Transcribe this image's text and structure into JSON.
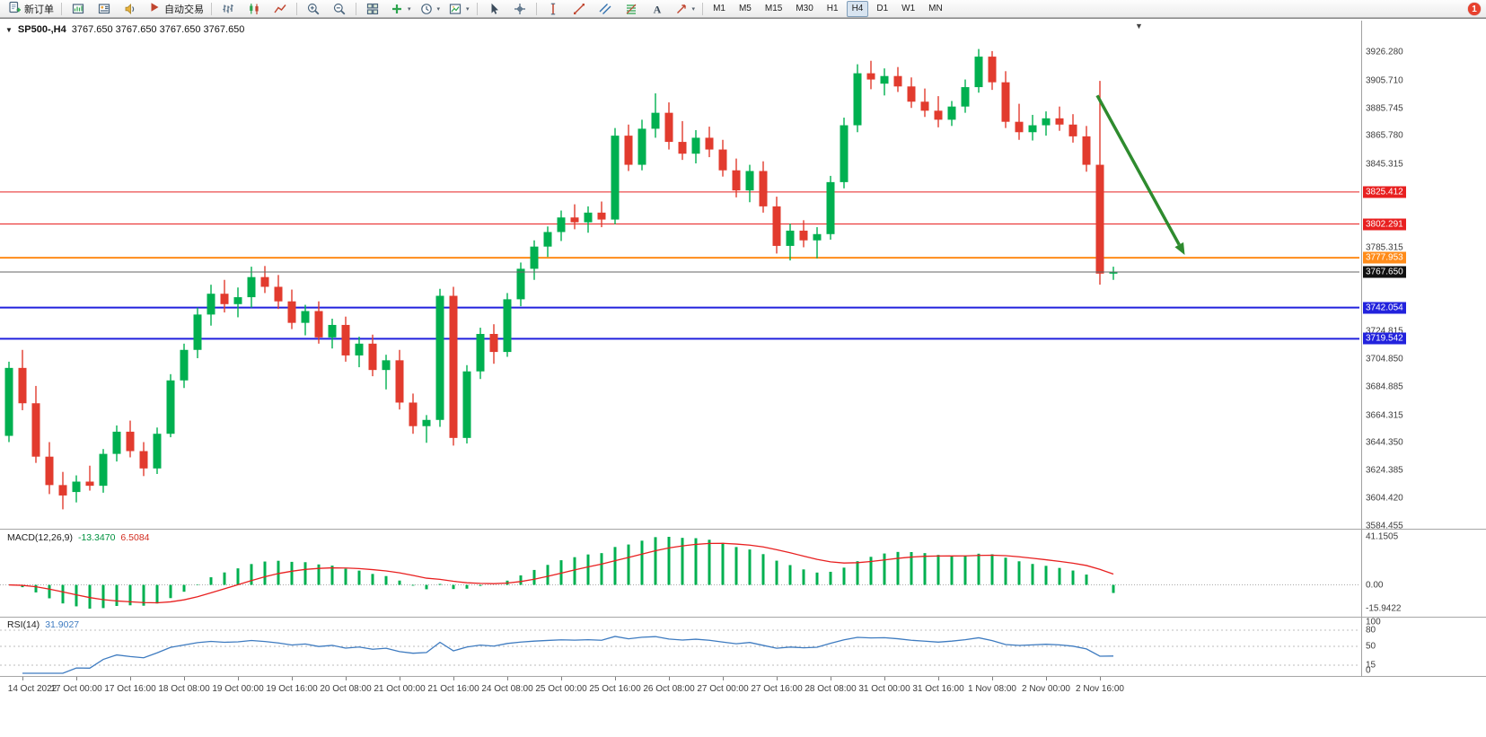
{
  "toolbar": {
    "new_order": {
      "label": "新订单"
    },
    "auto_trading": {
      "label": "自动交易"
    },
    "icon_groups": [
      {
        "name": "windows",
        "items": [
          {
            "name": "chart-window-button",
            "icon": "chart-window"
          },
          {
            "name": "market-watch-button",
            "icon": "profile"
          },
          {
            "name": "alerts-button",
            "icon": "sound"
          }
        ]
      },
      {
        "name": "chart-modes",
        "items": [
          {
            "name": "bar-chart-mode-button",
            "icon": "bars"
          },
          {
            "name": "candlestick-mode-button",
            "icon": "candles"
          },
          {
            "name": "line-chart-mode-button",
            "icon": "line-chart"
          }
        ]
      },
      {
        "name": "zoom",
        "items": [
          {
            "name": "zoom-in-button",
            "icon": "zoom-in"
          },
          {
            "name": "zoom-out-button",
            "icon": "zoom-out"
          }
        ]
      },
      {
        "name": "manage",
        "items": [
          {
            "name": "tile-windows-button",
            "icon": "tile"
          },
          {
            "name": "indicators-button",
            "icon": "indicators",
            "dropdown": true
          },
          {
            "name": "periods-button",
            "icon": "clock",
            "dropdown": true
          },
          {
            "name": "templates-button",
            "icon": "template",
            "dropdown": true
          }
        ]
      },
      {
        "name": "pointer",
        "items": [
          {
            "name": "cursor-tool-button",
            "icon": "cursor"
          },
          {
            "name": "crosshair-tool-button",
            "icon": "crosshair"
          }
        ]
      },
      {
        "name": "draw",
        "items": [
          {
            "name": "vertical-line-tool-button",
            "icon": "vline"
          },
          {
            "name": "trendline-tool-button",
            "icon": "trendline"
          },
          {
            "name": "channel-tool-button",
            "icon": "channel"
          },
          {
            "name": "fibonacci-tool-button",
            "icon": "fib"
          },
          {
            "name": "text-tool-button",
            "icon": "text"
          },
          {
            "name": "arrows-tool-button",
            "icon": "shapes",
            "dropdown": true
          }
        ]
      }
    ],
    "timeframes": [
      "M1",
      "M5",
      "M15",
      "M30",
      "H1",
      "H4",
      "D1",
      "W1",
      "MN"
    ],
    "active_timeframe": "H4",
    "notification_badge": "1"
  },
  "chart": {
    "title_symbol": "SP500-,H4",
    "title_ohlc": "3767.650 3767.650 3767.650 3767.650",
    "up_color": "#00b050",
    "down_color": "#e23b2e",
    "price_axis_labels": [
      "3926.280",
      "3905.710",
      "3885.745",
      "3865.780",
      "3845.315",
      "3785.315",
      "3724.815",
      "3704.850",
      "3684.885",
      "3664.315",
      "3644.350",
      "3624.385",
      "3604.420",
      "3584.455"
    ],
    "lines": [
      {
        "name": "resistance-line-1",
        "price": 3825.412,
        "label": "3825.412",
        "color": "#e82020",
        "width": 1
      },
      {
        "name": "resistance-line-2",
        "price": 3802.291,
        "label": "3802.291",
        "color": "#e82020",
        "width": 1
      },
      {
        "name": "pivot-line",
        "price": 3777.953,
        "label": "3777.953",
        "color": "#ff8c1a",
        "width": 2
      },
      {
        "name": "support-line-1",
        "price": 3742.054,
        "label": "3742.054",
        "color": "#2222dd",
        "width": 2
      },
      {
        "name": "support-line-2",
        "price": 3719.542,
        "label": "3719.542",
        "color": "#2222dd",
        "width": 2
      }
    ],
    "current_price": {
      "price": 3767.65,
      "label": "3767.650",
      "line_color": "#666666",
      "tag_color": "#111111"
    },
    "arrow_object": {
      "from_bar": 80.8,
      "from_price": 3895,
      "to_bar": 87.3,
      "to_price": 3780,
      "color": "#2e8b2e",
      "width": 3.5
    },
    "time_axis_labels": [
      "14 Oct 2022",
      "17 Oct 00:00",
      "17 Oct 16:00",
      "18 Oct 08:00",
      "19 Oct 00:00",
      "19 Oct 16:00",
      "20 Oct 08:00",
      "21 Oct 00:00",
      "21 Oct 16:00",
      "24 Oct 08:00",
      "25 Oct 00:00",
      "25 Oct 16:00",
      "26 Oct 08:00",
      "27 Oct 00:00",
      "27 Oct 16:00",
      "28 Oct 08:00",
      "31 Oct 00:00",
      "31 Oct 16:00",
      "1 Nov 08:00",
      "2 Nov 00:00",
      "2 Nov 16:00"
    ],
    "first_label_bar": 1,
    "bars_per_label": 4
  },
  "indicators": {
    "macd": {
      "label": "MACD(12,26,9)",
      "value_main": "-13.3470",
      "value_signal": "6.5084",
      "histogram_color": "#00b050",
      "signal_color": "#e82020",
      "axis_labels": [
        "41.1505",
        "0.00",
        "-15.9422"
      ],
      "axis_max": 41.1505,
      "axis_min": -15.9422
    },
    "rsi": {
      "label": "RSI(14)",
      "value": "31.9027",
      "line_color": "#3e7bc0",
      "axis_labels": [
        "100",
        "80",
        "50",
        "15",
        "0"
      ],
      "levels": [
        80,
        50,
        15
      ]
    }
  },
  "chart_data": {
    "type": "candlestick",
    "symbol": "SP500-",
    "timeframe": "H4",
    "title": "SP500-,H4",
    "visible_price_range": [
      3584.455,
      3926.28
    ],
    "ohlc": [
      [
        3649.5,
        3703.0,
        3645.0,
        3698.5
      ],
      [
        3698.5,
        3711.5,
        3668.0,
        3673.0
      ],
      [
        3673.0,
        3685.5,
        3630.0,
        3634.5
      ],
      [
        3634.5,
        3645.0,
        3607.5,
        3614.0
      ],
      [
        3614.0,
        3623.5,
        3596.5,
        3606.5
      ],
      [
        3609.0,
        3621.0,
        3601.5,
        3616.5
      ],
      [
        3616.5,
        3628.0,
        3610.0,
        3613.5
      ],
      [
        3613.5,
        3640.0,
        3608.5,
        3636.5
      ],
      [
        3636.5,
        3657.0,
        3631.0,
        3652.5
      ],
      [
        3652.5,
        3660.5,
        3634.0,
        3638.5
      ],
      [
        3638.5,
        3645.0,
        3620.5,
        3626.0
      ],
      [
        3626.0,
        3655.5,
        3622.0,
        3651.0
      ],
      [
        3651.0,
        3694.0,
        3648.5,
        3689.5
      ],
      [
        3689.5,
        3716.0,
        3684.0,
        3711.5
      ],
      [
        3711.5,
        3742.0,
        3705.5,
        3737.0
      ],
      [
        3737.0,
        3758.5,
        3729.0,
        3752.0
      ],
      [
        3752.0,
        3762.0,
        3738.5,
        3744.5
      ],
      [
        3744.5,
        3756.5,
        3735.0,
        3749.5
      ],
      [
        3749.5,
        3771.5,
        3742.0,
        3764.0
      ],
      [
        3764.0,
        3772.0,
        3752.5,
        3757.0
      ],
      [
        3757.0,
        3765.5,
        3741.0,
        3746.5
      ],
      [
        3746.5,
        3755.0,
        3726.5,
        3731.0
      ],
      [
        3731.0,
        3744.0,
        3722.0,
        3739.5
      ],
      [
        3739.5,
        3746.5,
        3716.0,
        3720.5
      ],
      [
        3720.5,
        3734.0,
        3712.5,
        3729.5
      ],
      [
        3729.5,
        3735.5,
        3703.0,
        3707.5
      ],
      [
        3707.5,
        3721.0,
        3699.0,
        3716.0
      ],
      [
        3716.0,
        3722.5,
        3692.5,
        3697.0
      ],
      [
        3697.0,
        3708.0,
        3683.0,
        3704.0
      ],
      [
        3704.0,
        3711.5,
        3668.5,
        3673.5
      ],
      [
        3673.5,
        3680.0,
        3651.0,
        3656.5
      ],
      [
        3656.5,
        3664.5,
        3644.5,
        3661.0
      ],
      [
        3661.0,
        3755.5,
        3656.0,
        3750.5
      ],
      [
        3750.5,
        3757.0,
        3642.5,
        3648.0
      ],
      [
        3648.0,
        3700.5,
        3644.0,
        3696.0
      ],
      [
        3696.0,
        3727.5,
        3690.5,
        3723.0
      ],
      [
        3723.0,
        3730.0,
        3701.5,
        3710.0
      ],
      [
        3710.0,
        3752.5,
        3706.5,
        3748.0
      ],
      [
        3748.0,
        3774.5,
        3743.0,
        3770.0
      ],
      [
        3770.0,
        3790.5,
        3762.0,
        3786.0
      ],
      [
        3786.0,
        3800.5,
        3778.5,
        3796.5
      ],
      [
        3796.5,
        3812.0,
        3790.0,
        3807.0
      ],
      [
        3807.0,
        3816.5,
        3798.5,
        3803.5
      ],
      [
        3803.5,
        3815.0,
        3796.0,
        3810.5
      ],
      [
        3810.5,
        3818.5,
        3800.0,
        3805.5
      ],
      [
        3805.5,
        3871.5,
        3802.0,
        3866.0
      ],
      [
        3866.0,
        3874.0,
        3840.5,
        3845.0
      ],
      [
        3845.0,
        3877.5,
        3841.0,
        3871.0
      ],
      [
        3871.0,
        3896.5,
        3864.5,
        3882.5
      ],
      [
        3882.5,
        3890.0,
        3856.0,
        3861.5
      ],
      [
        3861.5,
        3876.5,
        3848.5,
        3853.0
      ],
      [
        3853.0,
        3870.0,
        3846.0,
        3864.5
      ],
      [
        3864.5,
        3872.5,
        3850.5,
        3856.0
      ],
      [
        3856.0,
        3863.0,
        3836.5,
        3841.0
      ],
      [
        3841.0,
        3849.5,
        3821.5,
        3826.5
      ],
      [
        3826.5,
        3845.0,
        3818.0,
        3840.5
      ],
      [
        3840.5,
        3847.5,
        3810.5,
        3815.0
      ],
      [
        3815.0,
        3822.0,
        3781.0,
        3786.5
      ],
      [
        3786.5,
        3802.5,
        3776.0,
        3797.5
      ],
      [
        3797.5,
        3805.0,
        3785.5,
        3790.5
      ],
      [
        3790.5,
        3800.0,
        3777.5,
        3795.0
      ],
      [
        3795.0,
        3837.0,
        3791.0,
        3832.5
      ],
      [
        3832.5,
        3879.0,
        3828.0,
        3873.5
      ],
      [
        3873.5,
        3917.5,
        3868.5,
        3911.0
      ],
      [
        3911.0,
        3920.0,
        3899.5,
        3906.5
      ],
      [
        3903.5,
        3914.5,
        3895.0,
        3909.0
      ],
      [
        3909.0,
        3915.5,
        3897.5,
        3901.5
      ],
      [
        3901.5,
        3908.0,
        3886.0,
        3890.5
      ],
      [
        3890.5,
        3900.0,
        3879.5,
        3884.0
      ],
      [
        3884.0,
        3894.5,
        3872.0,
        3877.5
      ],
      [
        3877.5,
        3891.0,
        3873.0,
        3887.0
      ],
      [
        3887.0,
        3906.5,
        3882.5,
        3901.0
      ],
      [
        3901.0,
        3928.5,
        3897.0,
        3923.0
      ],
      [
        3923.0,
        3927.0,
        3899.0,
        3904.5
      ],
      [
        3904.5,
        3912.5,
        3871.5,
        3876.0
      ],
      [
        3876.0,
        3889.0,
        3863.0,
        3868.5
      ],
      [
        3868.5,
        3881.0,
        3862.5,
        3873.5
      ],
      [
        3873.5,
        3883.5,
        3866.0,
        3878.5
      ],
      [
        3878.5,
        3887.0,
        3869.5,
        3874.0
      ],
      [
        3874.0,
        3881.5,
        3861.0,
        3865.5
      ],
      [
        3865.5,
        3873.0,
        3840.0,
        3845.0
      ],
      [
        3845.0,
        3905.5,
        3758.5,
        3766.5
      ],
      [
        3766.5,
        3771.5,
        3762.0,
        3767.65
      ]
    ],
    "indicator_params": {
      "macd": [
        12,
        26,
        9
      ],
      "rsi": 14
    }
  }
}
